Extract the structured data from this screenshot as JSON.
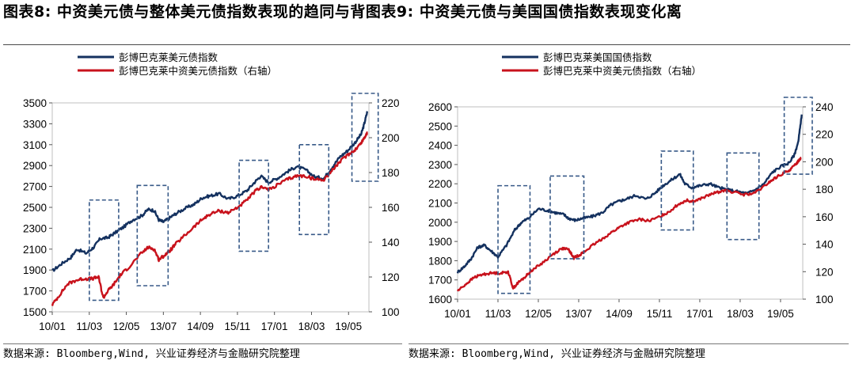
{
  "header": {
    "title": "图表8: 中资美元债与整体美元债指数表现的趋同与背图表9: 中资美元债与美国国债指数表现变化离"
  },
  "footer": {
    "source_left": "数据来源: Bloomberg,Wind, 兴业证券经济与金融研究院整理",
    "source_right": "数据来源: Bloomberg,Wind, 兴业证券经济与金融研究院整理"
  },
  "colors": {
    "navy": "#14315f",
    "red": "#c8121c",
    "box": "#385a88"
  },
  "chart_data": [
    {
      "type": "line",
      "title": "",
      "x_tick_labels": [
        "10/01",
        "11/03",
        "12/05",
        "13/07",
        "14/09",
        "15/11",
        "17/01",
        "18/03",
        "19/05"
      ],
      "x_range": [
        2010.0,
        2020.25
      ],
      "y_left": {
        "range": [
          1500,
          3500
        ],
        "ticks": [
          1500,
          1700,
          1900,
          2100,
          2300,
          2500,
          2700,
          2900,
          3100,
          3300,
          3500
        ]
      },
      "y_right": {
        "range": [
          100,
          220
        ],
        "ticks": [
          100,
          120,
          140,
          160,
          180,
          200,
          220
        ],
        "label": "右轴"
      },
      "series": [
        {
          "name": "彭博巴克莱美元债指数",
          "axis": "left",
          "color": "navy",
          "points": [
            [
              2010.0,
              1890
            ],
            [
              2010.3,
              1960
            ],
            [
              2010.6,
              2020
            ],
            [
              2010.8,
              2100
            ],
            [
              2011.1,
              2060
            ],
            [
              2011.35,
              2120
            ],
            [
              2011.55,
              2200
            ],
            [
              2011.8,
              2210
            ],
            [
              2012.0,
              2250
            ],
            [
              2012.3,
              2310
            ],
            [
              2012.6,
              2380
            ],
            [
              2012.9,
              2420
            ],
            [
              2013.1,
              2480
            ],
            [
              2013.3,
              2470
            ],
            [
              2013.45,
              2380
            ],
            [
              2013.6,
              2360
            ],
            [
              2013.8,
              2400
            ],
            [
              2014.0,
              2440
            ],
            [
              2014.3,
              2490
            ],
            [
              2014.6,
              2530
            ],
            [
              2014.85,
              2590
            ],
            [
              2015.1,
              2610
            ],
            [
              2015.4,
              2630
            ],
            [
              2015.7,
              2580
            ],
            [
              2016.0,
              2610
            ],
            [
              2016.3,
              2660
            ],
            [
              2016.55,
              2740
            ],
            [
              2016.75,
              2800
            ],
            [
              2017.0,
              2740
            ],
            [
              2017.3,
              2780
            ],
            [
              2017.6,
              2840
            ],
            [
              2017.9,
              2890
            ],
            [
              2018.2,
              2860
            ],
            [
              2018.5,
              2790
            ],
            [
              2018.8,
              2780
            ],
            [
              2019.05,
              2880
            ],
            [
              2019.3,
              2980
            ],
            [
              2019.55,
              3040
            ],
            [
              2019.8,
              3120
            ],
            [
              2020.0,
              3200
            ],
            [
              2020.1,
              3300
            ],
            [
              2020.2,
              3420
            ]
          ]
        },
        {
          "name": "彭博巴克莱中资美元债指数（右轴）",
          "axis": "right",
          "color": "red",
          "points": [
            [
              2010.0,
              104
            ],
            [
              2010.25,
              110
            ],
            [
              2010.5,
              116
            ],
            [
              2010.75,
              118
            ],
            [
              2011.0,
              119
            ],
            [
              2011.3,
              119
            ],
            [
              2011.5,
              120
            ],
            [
              2011.65,
              108
            ],
            [
              2011.8,
              112
            ],
            [
              2012.0,
              116
            ],
            [
              2012.2,
              121
            ],
            [
              2012.5,
              126
            ],
            [
              2012.85,
              133
            ],
            [
              2013.1,
              137
            ],
            [
              2013.3,
              136
            ],
            [
              2013.45,
              130
            ],
            [
              2013.6,
              132
            ],
            [
              2013.8,
              135
            ],
            [
              2014.0,
              139
            ],
            [
              2014.3,
              144
            ],
            [
              2014.6,
              149
            ],
            [
              2014.85,
              153
            ],
            [
              2015.1,
              156
            ],
            [
              2015.4,
              158
            ],
            [
              2015.7,
              157
            ],
            [
              2016.0,
              160
            ],
            [
              2016.3,
              164
            ],
            [
              2016.55,
              169
            ],
            [
              2016.8,
              172
            ],
            [
              2017.0,
              170
            ],
            [
              2017.3,
              173
            ],
            [
              2017.6,
              176
            ],
            [
              2017.9,
              178
            ],
            [
              2018.2,
              178
            ],
            [
              2018.5,
              176
            ],
            [
              2018.8,
              176
            ],
            [
              2019.05,
              181
            ],
            [
              2019.3,
              186
            ],
            [
              2019.55,
              190
            ],
            [
              2019.8,
              193
            ],
            [
              2020.0,
              197
            ],
            [
              2020.1,
              200
            ],
            [
              2020.2,
              203
            ]
          ]
        }
      ],
      "highlight_boxes": [
        {
          "x": [
            2011.2,
            2012.15
          ],
          "y_left": [
            1610,
            2570
          ]
        },
        {
          "x": [
            2012.75,
            2013.75
          ],
          "y_left": [
            1750,
            2710
          ]
        },
        {
          "x": [
            2016.05,
            2017.0
          ],
          "y_left": [
            2080,
            2950
          ]
        },
        {
          "x": [
            2018.0,
            2018.95
          ],
          "y_left": [
            2240,
            3100
          ]
        },
        {
          "x": [
            2019.7,
            2020.55
          ],
          "y_left": [
            2750,
            3610
          ]
        }
      ]
    },
    {
      "type": "line",
      "title": "",
      "x_tick_labels": [
        "10/01",
        "11/03",
        "12/05",
        "13/07",
        "14/09",
        "15/11",
        "17/01",
        "18/03",
        "19/05"
      ],
      "x_range": [
        2010.0,
        2020.25
      ],
      "y_left": {
        "range": [
          1600,
          2600
        ],
        "ticks": [
          1600,
          1700,
          1800,
          1900,
          2000,
          2100,
          2200,
          2300,
          2400,
          2500,
          2600
        ]
      },
      "y_right": {
        "range": [
          100,
          240
        ],
        "ticks": [
          100,
          120,
          140,
          160,
          180,
          200,
          220,
          240
        ],
        "label": "右轴"
      },
      "series": [
        {
          "name": "彭博巴克莱美国国债指数",
          "axis": "left",
          "color": "navy",
          "points": [
            [
              2010.0,
              1740
            ],
            [
              2010.2,
              1770
            ],
            [
              2010.4,
              1810
            ],
            [
              2010.6,
              1870
            ],
            [
              2010.8,
              1880
            ],
            [
              2011.0,
              1850
            ],
            [
              2011.2,
              1820
            ],
            [
              2011.45,
              1880
            ],
            [
              2011.7,
              1960
            ],
            [
              2011.9,
              2000
            ],
            [
              2012.1,
              2020
            ],
            [
              2012.4,
              2070
            ],
            [
              2012.7,
              2060
            ],
            [
              2012.9,
              2050
            ],
            [
              2013.15,
              2040
            ],
            [
              2013.3,
              2020
            ],
            [
              2013.5,
              2010
            ],
            [
              2013.7,
              2020
            ],
            [
              2014.0,
              2030
            ],
            [
              2014.3,
              2050
            ],
            [
              2014.55,
              2090
            ],
            [
              2014.8,
              2110
            ],
            [
              2015.0,
              2120
            ],
            [
              2015.3,
              2140
            ],
            [
              2015.6,
              2120
            ],
            [
              2015.85,
              2150
            ],
            [
              2016.1,
              2190
            ],
            [
              2016.35,
              2220
            ],
            [
              2016.6,
              2250
            ],
            [
              2016.75,
              2200
            ],
            [
              2016.95,
              2180
            ],
            [
              2017.2,
              2190
            ],
            [
              2017.5,
              2200
            ],
            [
              2017.75,
              2180
            ],
            [
              2018.0,
              2170
            ],
            [
              2018.3,
              2160
            ],
            [
              2018.6,
              2150
            ],
            [
              2018.85,
              2170
            ],
            [
              2019.1,
              2200
            ],
            [
              2019.35,
              2260
            ],
            [
              2019.6,
              2290
            ],
            [
              2019.85,
              2310
            ],
            [
              2020.0,
              2350
            ],
            [
              2020.12,
              2420
            ],
            [
              2020.22,
              2560
            ]
          ]
        },
        {
          "name": "彭博巴克莱中资美元债指数（右轴）",
          "axis": "right",
          "color": "red",
          "points": [
            [
              2010.0,
              106
            ],
            [
              2010.25,
              111
            ],
            [
              2010.5,
              116
            ],
            [
              2010.75,
              118
            ],
            [
              2011.0,
              119
            ],
            [
              2011.3,
              119
            ],
            [
              2011.5,
              120
            ],
            [
              2011.65,
              108
            ],
            [
              2011.8,
              112
            ],
            [
              2012.0,
              116
            ],
            [
              2012.2,
              121
            ],
            [
              2012.5,
              126
            ],
            [
              2012.85,
              133
            ],
            [
              2013.1,
              137
            ],
            [
              2013.3,
              136
            ],
            [
              2013.45,
              130
            ],
            [
              2013.6,
              132
            ],
            [
              2013.8,
              135
            ],
            [
              2014.0,
              139
            ],
            [
              2014.3,
              144
            ],
            [
              2014.6,
              149
            ],
            [
              2014.85,
              153
            ],
            [
              2015.1,
              156
            ],
            [
              2015.4,
              158
            ],
            [
              2015.7,
              157
            ],
            [
              2016.0,
              160
            ],
            [
              2016.3,
              164
            ],
            [
              2016.55,
              169
            ],
            [
              2016.8,
              172
            ],
            [
              2017.0,
              171
            ],
            [
              2017.3,
              174
            ],
            [
              2017.6,
              177
            ],
            [
              2017.9,
              179
            ],
            [
              2018.2,
              178
            ],
            [
              2018.5,
              176
            ],
            [
              2018.8,
              177
            ],
            [
              2019.05,
              181
            ],
            [
              2019.3,
              186
            ],
            [
              2019.55,
              190
            ],
            [
              2019.8,
              193
            ],
            [
              2020.0,
              197
            ],
            [
              2020.1,
              200
            ],
            [
              2020.2,
              203
            ]
          ]
        }
      ],
      "highlight_boxes": [
        {
          "x": [
            2011.2,
            2012.15
          ],
          "y_left": [
            1630,
            2190
          ]
        },
        {
          "x": [
            2012.75,
            2013.75
          ],
          "y_left": [
            1810,
            2240
          ]
        },
        {
          "x": [
            2016.05,
            2017.0
          ],
          "y_left": [
            1960,
            2370
          ]
        },
        {
          "x": [
            2018.0,
            2018.95
          ],
          "y_left": [
            1910,
            2360
          ]
        },
        {
          "x": [
            2019.7,
            2020.55
          ],
          "y_left": [
            2250,
            2650
          ]
        }
      ]
    }
  ]
}
